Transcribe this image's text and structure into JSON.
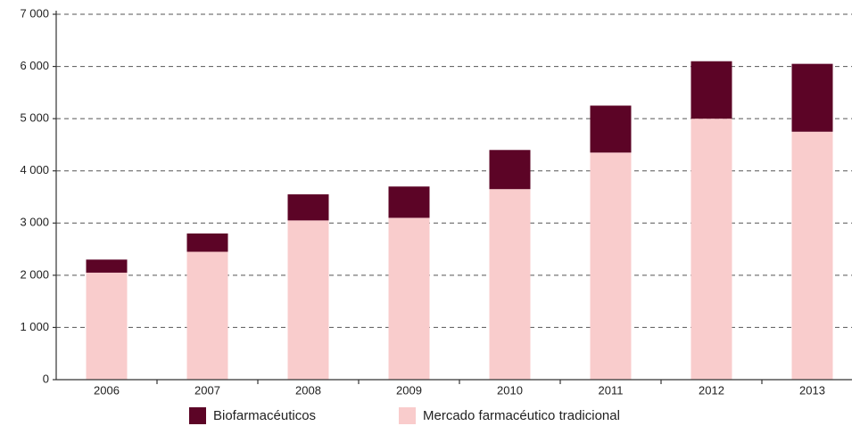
{
  "chart_data": {
    "type": "stacked_bar",
    "categories": [
      "2006",
      "2007",
      "2008",
      "2009",
      "2010",
      "2011",
      "2012",
      "2013"
    ],
    "series": [
      {
        "name": "Mercado farmacéutico tradicional",
        "color": "#f9cccc",
        "values": [
          2050,
          2450,
          3050,
          3100,
          3650,
          4350,
          5000,
          4750
        ]
      },
      {
        "name": "Biofarmacéuticos",
        "color": "#5c0426",
        "values": [
          250,
          350,
          500,
          600,
          750,
          900,
          1100,
          1300
        ]
      }
    ],
    "ylim": [
      0,
      7000
    ],
    "yticks": [
      0,
      {
        "value": 1000,
        "label": "1 000"
      },
      {
        "value": 2000,
        "label": "2 000"
      },
      {
        "value": 3000,
        "label": "3 000"
      },
      {
        "value": 4000,
        "label": "4 000"
      },
      {
        "value": 5000,
        "label": "5 000"
      },
      {
        "value": 6000,
        "label": "6 000"
      },
      {
        "value": 7000,
        "label": "7 000"
      }
    ],
    "grid": true
  }
}
